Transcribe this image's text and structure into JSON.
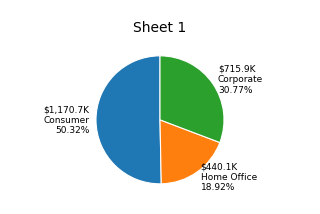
{
  "chart_data": {
    "type": "pie",
    "title": "Sheet 1",
    "categories": [
      "$1,170.7K\nConsumer\n50.32%",
      "$440.1K\nHome Office\n18.92%",
      "$715.9K\nCorporate\n30.77%"
    ],
    "values": [
      50.32,
      18.92,
      30.77
    ]
  }
}
